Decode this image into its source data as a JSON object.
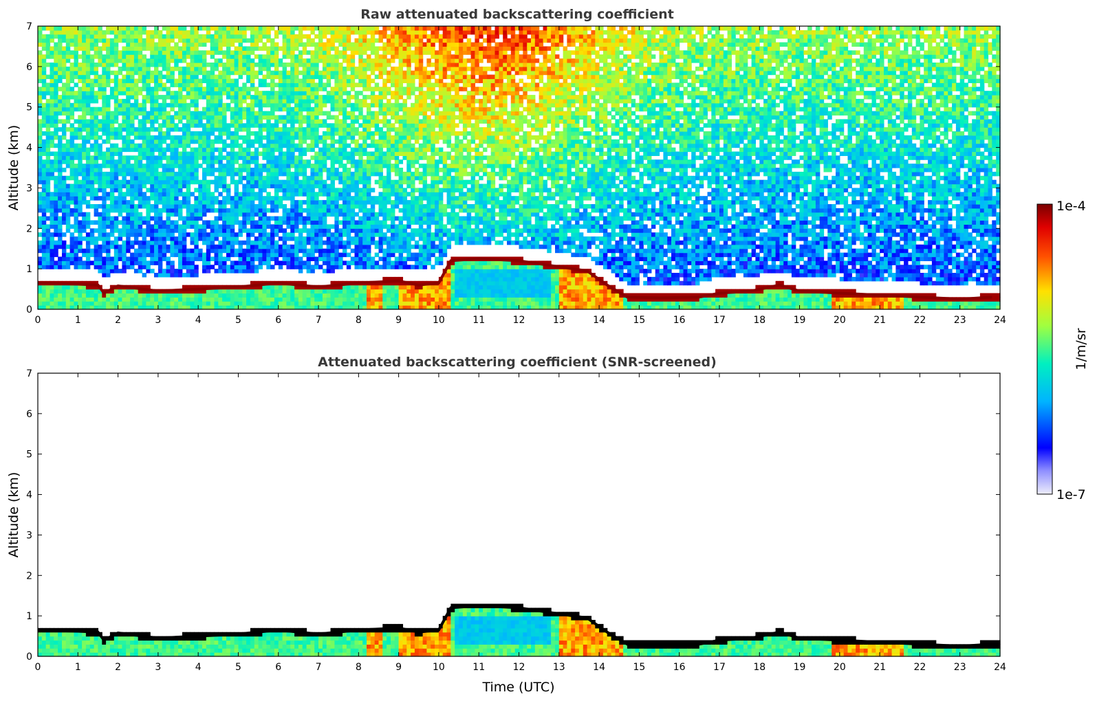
{
  "chart_data": [
    {
      "type": "heatmap",
      "title": "Raw attenuated backscattering coefficient",
      "xlabel": "",
      "ylabel": "Altitude (km)",
      "xlim": [
        0,
        24
      ],
      "ylim": [
        0,
        7
      ],
      "x_ticks": [
        "0",
        "1",
        "2",
        "3",
        "4",
        "5",
        "6",
        "7",
        "8",
        "9",
        "10",
        "11",
        "12",
        "13",
        "14",
        "15",
        "16",
        "17",
        "18",
        "19",
        "20",
        "21",
        "22",
        "23",
        "24"
      ],
      "y_ticks": [
        "0",
        "1",
        "2",
        "3",
        "4",
        "5",
        "6",
        "7"
      ],
      "screened": false,
      "mixed_layer_top": [
        [
          0,
          0.65
        ],
        [
          1,
          0.62
        ],
        [
          1.5,
          0.6
        ],
        [
          1.65,
          0.4
        ],
        [
          2,
          0.58
        ],
        [
          3,
          0.45
        ],
        [
          4,
          0.5
        ],
        [
          5,
          0.55
        ],
        [
          6,
          0.65
        ],
        [
          7,
          0.55
        ],
        [
          8,
          0.65
        ],
        [
          9,
          0.7
        ],
        [
          9.5,
          0.6
        ],
        [
          10,
          0.65
        ],
        [
          10.3,
          1.2
        ],
        [
          11,
          1.25
        ],
        [
          12,
          1.2
        ],
        [
          13,
          1.05
        ],
        [
          13.7,
          0.95
        ],
        [
          14.2,
          0.6
        ],
        [
          14.7,
          0.3
        ],
        [
          15.5,
          0.28
        ],
        [
          16.5,
          0.3
        ],
        [
          17,
          0.4
        ],
        [
          17.8,
          0.45
        ],
        [
          18.5,
          0.6
        ],
        [
          19,
          0.45
        ],
        [
          20,
          0.4
        ],
        [
          21,
          0.35
        ],
        [
          22,
          0.3
        ],
        [
          23,
          0.25
        ],
        [
          23.8,
          0.3
        ]
      ]
    },
    {
      "type": "heatmap",
      "title": "Attenuated backscattering coefficient (SNR-screened)",
      "xlabel": "Time (UTC)",
      "ylabel": "Altitude (km)",
      "xlim": [
        0,
        24
      ],
      "ylim": [
        0,
        7
      ],
      "x_ticks": [
        "0",
        "1",
        "2",
        "3",
        "4",
        "5",
        "6",
        "7",
        "8",
        "9",
        "10",
        "11",
        "12",
        "13",
        "14",
        "15",
        "16",
        "17",
        "18",
        "19",
        "20",
        "21",
        "22",
        "23",
        "24"
      ],
      "y_ticks": [
        "0",
        "1",
        "2",
        "3",
        "4",
        "5",
        "6",
        "7"
      ],
      "screened": true,
      "mixed_layer_top": [
        [
          0,
          0.65
        ],
        [
          1,
          0.62
        ],
        [
          1.5,
          0.6
        ],
        [
          1.65,
          0.4
        ],
        [
          2,
          0.58
        ],
        [
          3,
          0.45
        ],
        [
          4,
          0.5
        ],
        [
          5,
          0.55
        ],
        [
          6,
          0.65
        ],
        [
          7,
          0.55
        ],
        [
          8,
          0.65
        ],
        [
          9,
          0.7
        ],
        [
          9.5,
          0.6
        ],
        [
          10,
          0.65
        ],
        [
          10.3,
          1.2
        ],
        [
          11,
          1.25
        ],
        [
          12,
          1.2
        ],
        [
          13,
          1.05
        ],
        [
          13.7,
          0.95
        ],
        [
          14.2,
          0.6
        ],
        [
          14.7,
          0.3
        ],
        [
          15.5,
          0.28
        ],
        [
          16.5,
          0.3
        ],
        [
          17,
          0.4
        ],
        [
          17.8,
          0.45
        ],
        [
          18.5,
          0.6
        ],
        [
          19,
          0.45
        ],
        [
          20,
          0.4
        ],
        [
          21,
          0.35
        ],
        [
          22,
          0.3
        ],
        [
          23,
          0.25
        ],
        [
          23.8,
          0.3
        ]
      ]
    }
  ],
  "colorbar": {
    "label": "1/m/sr",
    "max_label": "1e-4",
    "min_label": "1e-7",
    "scale": "log",
    "colormap": [
      "#e8e8f8",
      "#0000ff",
      "#00c8ff",
      "#00ffb0",
      "#c8ff00",
      "#ffd000",
      "#ff3000",
      "#8b0000"
    ]
  }
}
